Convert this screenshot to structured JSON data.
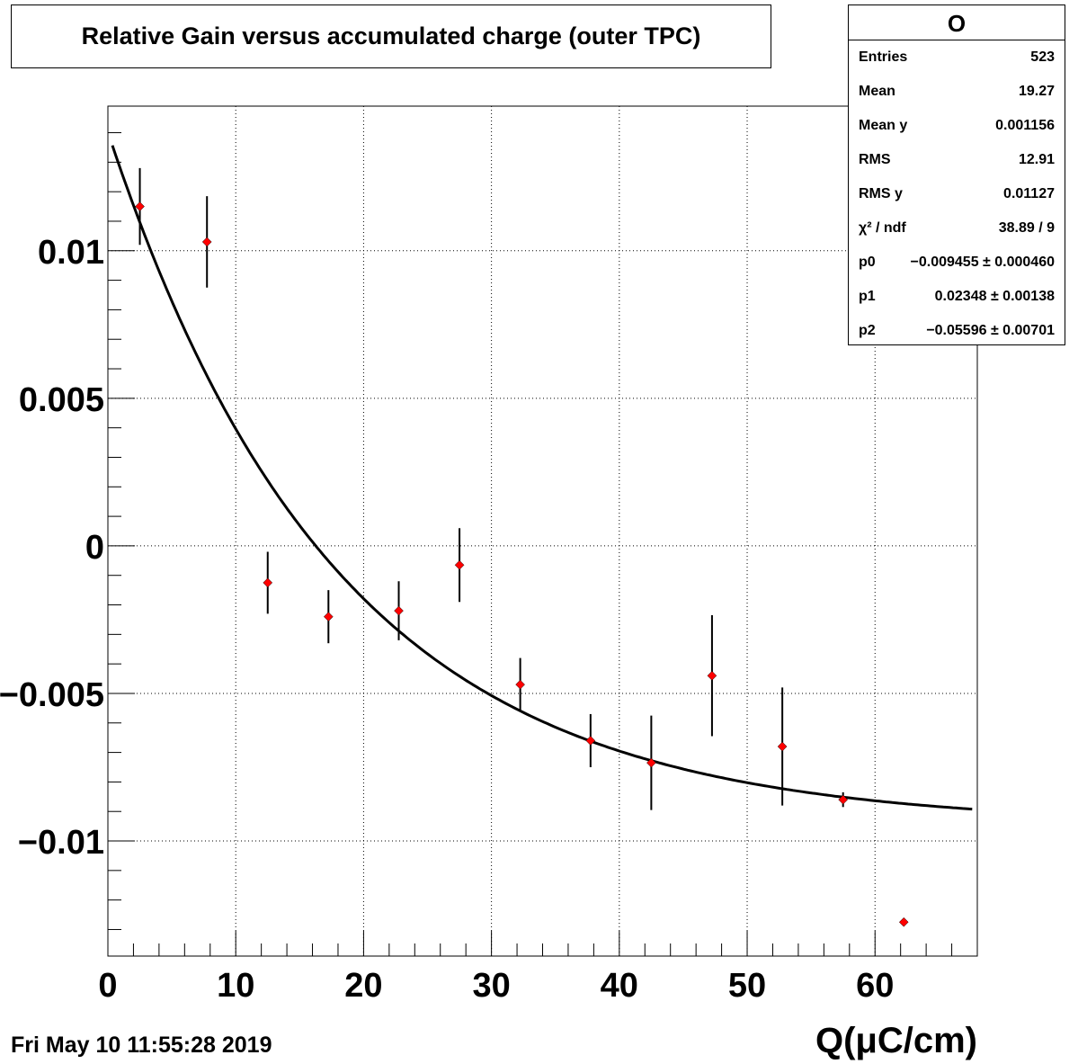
{
  "chart_data": {
    "type": "scatter",
    "title": "Relative Gain versus accumulated charge (outer TPC)",
    "xlabel": "Q(μC/cm)",
    "ylabel": "",
    "xlim": [
      0,
      68
    ],
    "ylim": [
      -0.0139,
      0.0149
    ],
    "grid": true,
    "x_ticks": [
      0,
      10,
      20,
      30,
      40,
      50,
      60
    ],
    "x_tick_labels": [
      "0",
      "10",
      "20",
      "30",
      "40",
      "50",
      "60"
    ],
    "y_ticks": [
      0.01,
      0.005,
      0,
      -0.005,
      -0.01
    ],
    "y_tick_labels": [
      "0.01",
      "0.005",
      "0",
      "−0.005",
      "−0.01"
    ],
    "series": [
      {
        "x": [
          2.5,
          7.75,
          12.5,
          17.25,
          22.75,
          27.5,
          32.25,
          37.75,
          42.5,
          47.25,
          52.75,
          57.5,
          62.25
        ],
        "y": [
          0.0115,
          0.0103,
          -0.00125,
          -0.0024,
          -0.0022,
          -0.00065,
          -0.0047,
          -0.0066,
          -0.00735,
          -0.0044,
          -0.0068,
          -0.0086,
          -0.01275
        ],
        "yerr": [
          0.0013,
          0.00155,
          0.00105,
          0.0009,
          0.001,
          0.00125,
          0.0009,
          0.0009,
          0.0016,
          0.00205,
          0.002,
          0.00025,
          0.0001
        ]
      }
    ],
    "fit": {
      "p0": -0.009455,
      "p1": 0.02348,
      "p2": -0.05596
    }
  },
  "stats": {
    "name": "O",
    "rows": [
      {
        "label": "Entries",
        "value": "523"
      },
      {
        "label": "Mean",
        "value": "19.27"
      },
      {
        "label": "Mean y",
        "value": "0.001156"
      },
      {
        "label": "RMS",
        "value": "12.91"
      },
      {
        "label": "RMS y",
        "value": "0.01127"
      },
      {
        "label": "χ² / ndf",
        "value": "38.89 / 9"
      },
      {
        "label": "p0",
        "value": "−0.009455 ± 0.000460"
      },
      {
        "label": "p1",
        "value": "0.02348 ± 0.00138"
      },
      {
        "label": "p2",
        "value": "−0.05596 ± 0.00701"
      }
    ]
  },
  "timestamp": "Fri May 10 11:55:28 2019"
}
